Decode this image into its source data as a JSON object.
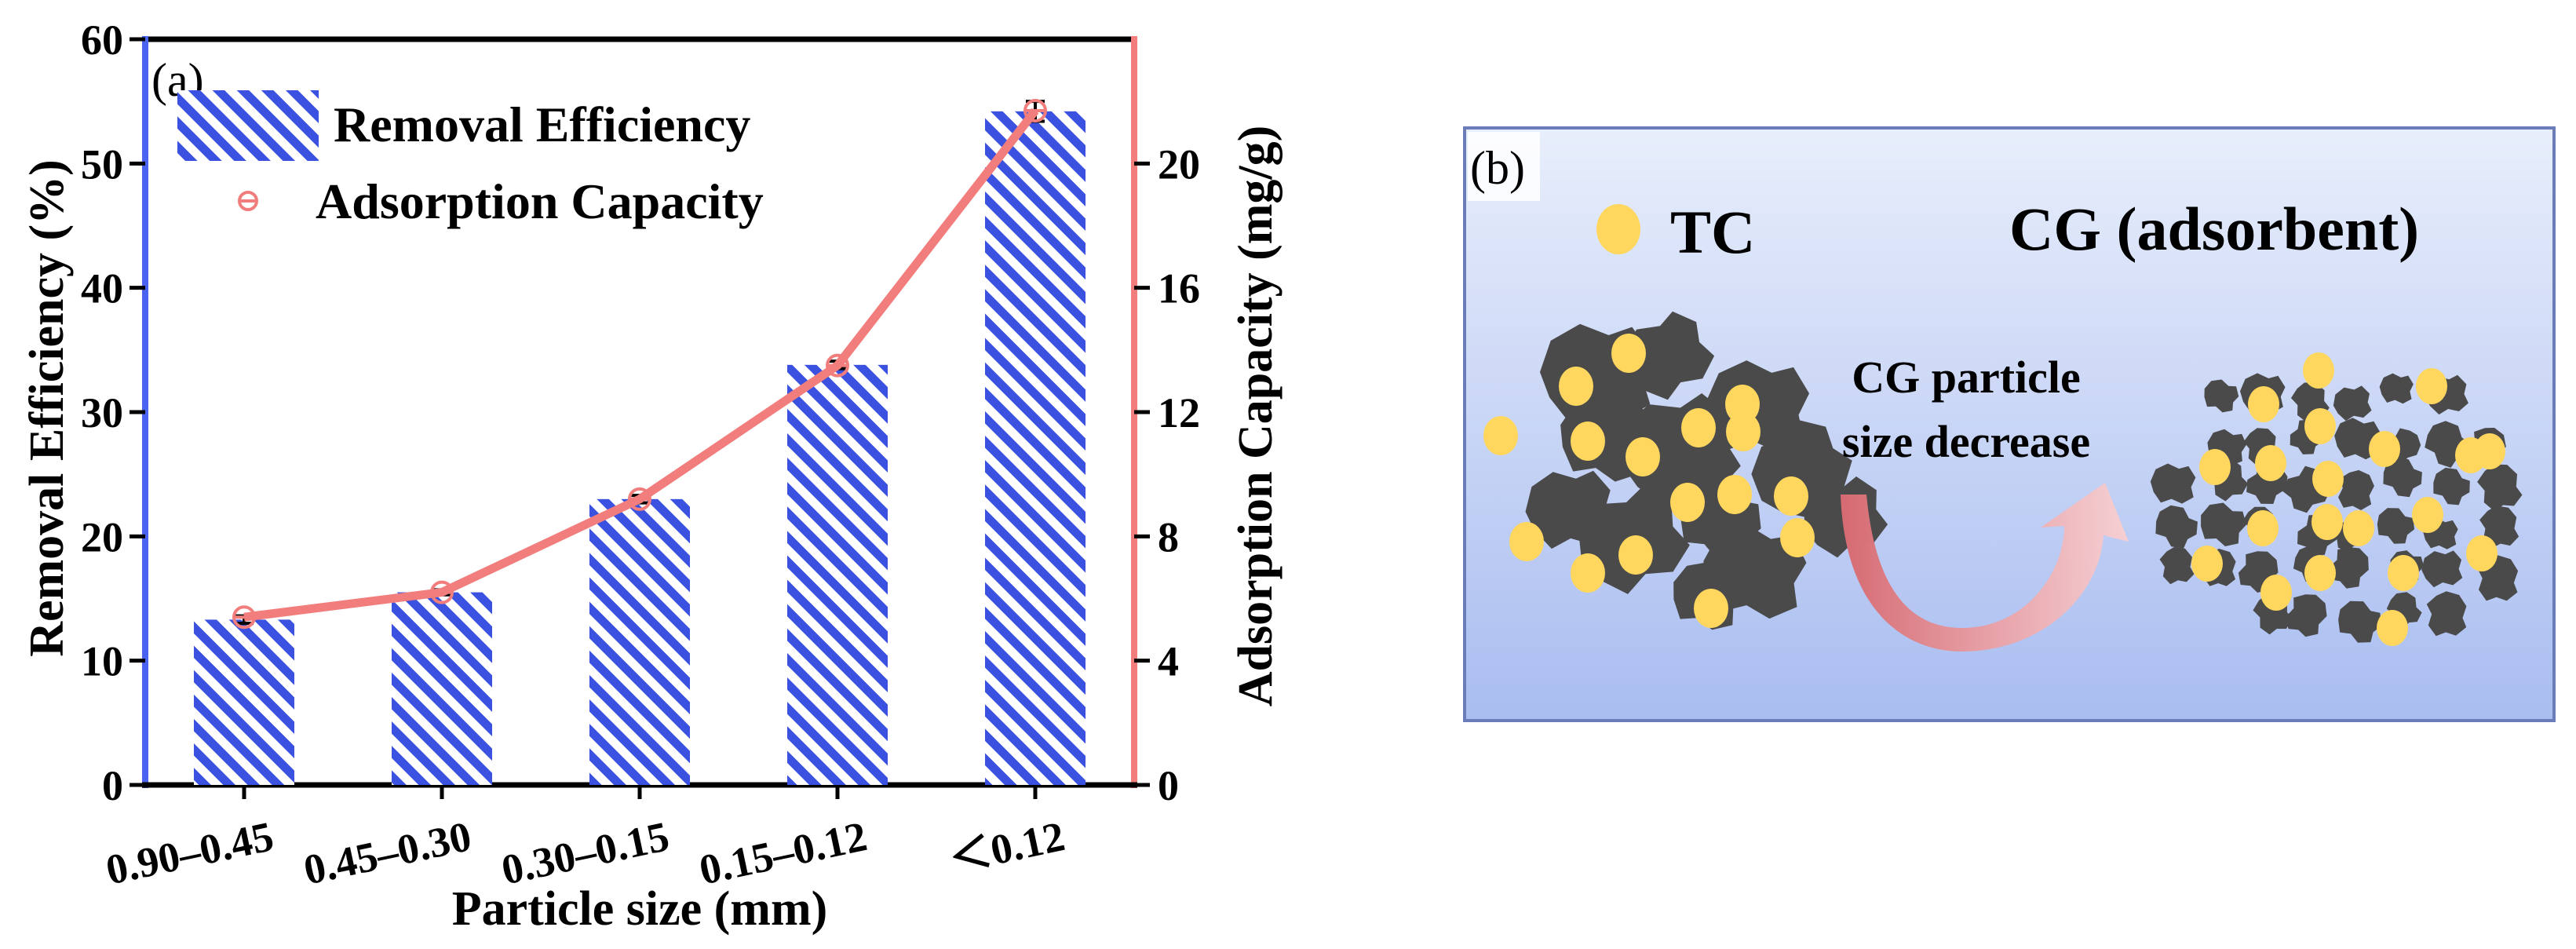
{
  "chart_data": {
    "type": "bar",
    "panel_label": "(a)",
    "categories": [
      "0.90–0.45",
      "0.45–0.30",
      "0.30–0.15",
      "0.15–0.12",
      "＜0.12"
    ],
    "series": [
      {
        "name": "Removal Efficiency",
        "kind": "bar",
        "axis": "left",
        "values": [
          13.3,
          15.5,
          23.0,
          33.8,
          54.2
        ],
        "errors": [
          0.3,
          0.2,
          0.3,
          0.3,
          0.8
        ]
      },
      {
        "name": "Adsorption Capacity",
        "kind": "line",
        "axis": "right",
        "values": [
          5.4,
          6.2,
          9.2,
          13.5,
          21.7
        ]
      }
    ],
    "xlabel": "Particle size (mm)",
    "ylabel": "Removal Efficiency (%)",
    "ylabel_right": "Adsorption Capacity (mg/g)",
    "ylim": [
      0,
      60
    ],
    "yticks": [
      "0",
      "10",
      "20",
      "30",
      "40",
      "50",
      "60"
    ],
    "ylim_right": [
      0,
      24
    ],
    "yticks_right": [
      "0",
      "4",
      "8",
      "12",
      "16",
      "20"
    ],
    "legend_position": "top-left",
    "colors": {
      "bar": "#3b52e0",
      "line": "#f27d7d",
      "left_axis": "#4a63f0",
      "right_axis": "#f27d7d"
    }
  },
  "diagram": {
    "panel_label": "(b)",
    "legend_tc": "TC",
    "legend_cg": "CG  (adsorbent)",
    "arrow_label_line1": "CG particle",
    "arrow_label_line2": "size decrease",
    "colors": {
      "background_top": "#e8eefb",
      "background_bottom": "#a9bdf0",
      "border": "#6a7db8",
      "particle": "#4a4a4a",
      "tc": "#ffd65e",
      "arrow": "#e58a8a"
    }
  }
}
